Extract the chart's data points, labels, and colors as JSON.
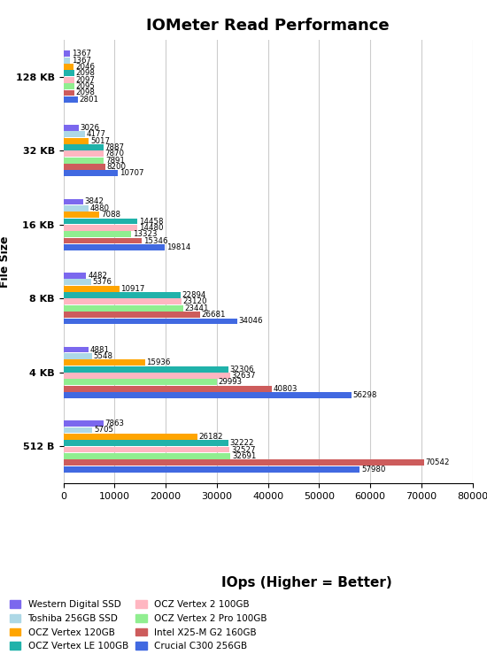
{
  "title": "IOMeter Read Performance",
  "xlabel": "IOps (Higher = Better)",
  "ylabel": "File Size",
  "categories": [
    "512 B",
    "4 KB",
    "8 KB",
    "16 KB",
    "32 KB",
    "128 KB"
  ],
  "series": [
    {
      "label": "Western Digital SSD",
      "color": "#7B68EE",
      "values": [
        7863,
        4881,
        4482,
        3842,
        3026,
        1367
      ]
    },
    {
      "label": "Toshiba 256GB SSD",
      "color": "#ADD8E6",
      "values": [
        5705,
        5548,
        5376,
        4880,
        4177,
        1367
      ]
    },
    {
      "label": "OCZ Vertex 120GB",
      "color": "#FFA500",
      "values": [
        26182,
        15936,
        10917,
        7088,
        5017,
        2046
      ]
    },
    {
      "label": "OCZ Vertex LE 100GB",
      "color": "#20B2AA",
      "values": [
        32222,
        32306,
        22894,
        14458,
        7887,
        2098
      ]
    },
    {
      "label": "OCZ Vertex 2 100GB",
      "color": "#FFB6C1",
      "values": [
        32527,
        32637,
        23120,
        14480,
        7870,
        2097
      ]
    },
    {
      "label": "OCZ Vertex 2 Pro 100GB",
      "color": "#90EE90",
      "values": [
        32691,
        29993,
        23441,
        13323,
        7891,
        2095
      ]
    },
    {
      "label": "Intel X25-M G2 160GB",
      "color": "#CD5C5C",
      "values": [
        70542,
        40803,
        26681,
        15346,
        8200,
        2098
      ]
    },
    {
      "label": "Crucial C300 256GB",
      "color": "#4169E1",
      "values": [
        57980,
        56298,
        34046,
        19814,
        10707,
        2801
      ]
    }
  ],
  "xlim": [
    0,
    80000
  ],
  "xticks": [
    0,
    10000,
    20000,
    30000,
    40000,
    50000,
    60000,
    70000,
    80000
  ],
  "xtick_labels": [
    "0",
    "10000",
    "20000",
    "30000",
    "40000",
    "50000",
    "60000",
    "70000",
    "80000"
  ],
  "annotation_fontsize": 6.2,
  "title_fontsize": 13,
  "axis_label_fontsize": 9,
  "tick_fontsize": 8,
  "legend_fontsize": 7.5,
  "background_color": "#FFFFFF",
  "plot_bg_color": "#FFFFFF",
  "grid_color": "#CCCCCC"
}
